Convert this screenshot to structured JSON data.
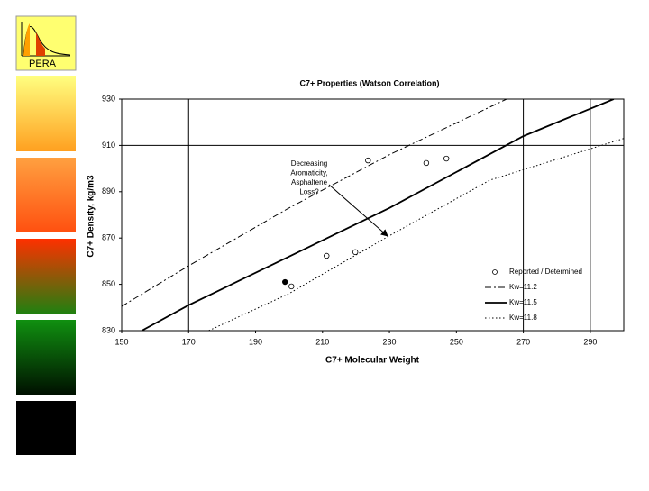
{
  "logo": {
    "text": "PERA"
  },
  "chart_data": {
    "type": "line",
    "title": "C7+ Properties (Watson Correlation)",
    "x_label": "C7+ Molecular Weight",
    "y_label": "C7+ Density, kg/m3",
    "xlim": [
      150,
      300
    ],
    "ylim": [
      830,
      930
    ],
    "xticks": [
      150,
      170,
      190,
      210,
      230,
      250,
      270,
      290
    ],
    "yticks": [
      830,
      850,
      870,
      890,
      910,
      930
    ],
    "xgrid": [
      170,
      270,
      290
    ],
    "ygrid": [
      910
    ],
    "series": [
      {
        "name": "Reported / Determined",
        "kind": "scatter",
        "filled": false,
        "color": "#000000",
        "x": [
          200.7,
          211.2,
          219.8,
          223.6,
          241,
          247
        ],
        "values": [
          849.1,
          862.3,
          863.9,
          903.5,
          902.4,
          904.3
        ]
      },
      {
        "kind": "scatter",
        "filled": true,
        "color": "#000000",
        "x": [
          198.8
        ],
        "values": [
          851
        ]
      },
      {
        "name": "Kw=11.2",
        "kind": "line",
        "style": "dashdot",
        "color": "#000000",
        "x": [
          150,
          170,
          200,
          230,
          265
        ],
        "values": [
          840.5,
          858,
          883,
          906,
          930
        ]
      },
      {
        "name": "Kw=11.5",
        "kind": "line",
        "style": "solid",
        "color": "#000000",
        "x": [
          156,
          170,
          200,
          230,
          270,
          297
        ],
        "values": [
          830,
          841,
          862,
          883,
          914,
          930
        ]
      },
      {
        "name": "Kw=11.8",
        "kind": "line",
        "style": "dotted",
        "color": "#000000",
        "x": [
          176,
          200,
          230,
          260,
          300
        ],
        "values": [
          830,
          846,
          871,
          895,
          913
        ]
      }
    ],
    "annotation": [
      "Decreasing",
      "Aromaticity,",
      "Asphaltene",
      "Loss?"
    ]
  }
}
